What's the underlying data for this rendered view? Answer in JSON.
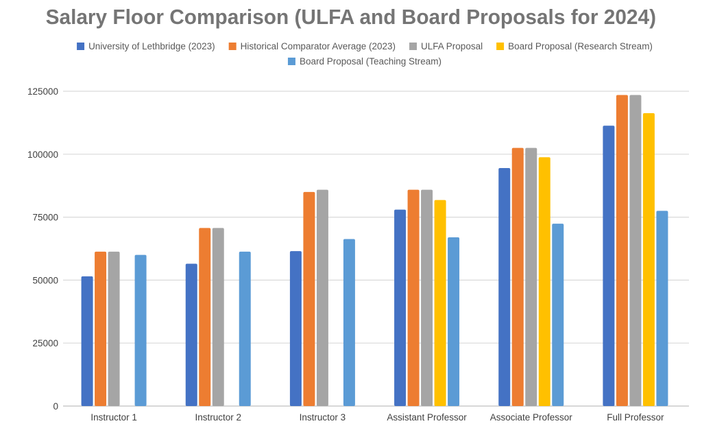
{
  "chart_data": {
    "type": "bar",
    "title": "Salary Floor Comparison (ULFA and Board Proposals for 2024)",
    "xlabel": "",
    "ylabel": "",
    "ylim": [
      0,
      125000
    ],
    "yticks": [
      "0",
      "25000",
      "50000",
      "75000",
      "100000",
      "125000"
    ],
    "grid": true,
    "legend_position": "top",
    "categories": [
      "Instructor 1",
      "Instructor 2",
      "Instructor 3",
      "Assistant Professor",
      "Associate Professor",
      "Full Professor"
    ],
    "series": [
      {
        "name": "University of Lethbridge (2023)",
        "color": "#4472C4",
        "values": [
          51500,
          56500,
          61500,
          78000,
          94500,
          111300
        ]
      },
      {
        "name": "Historical Comparator Average (2023)",
        "color": "#ED7D31",
        "values": [
          61300,
          70700,
          85000,
          85900,
          102500,
          123500
        ]
      },
      {
        "name": "ULFA Proposal",
        "color": "#A5A5A5",
        "values": [
          61300,
          70700,
          85900,
          85900,
          102500,
          123500
        ]
      },
      {
        "name": "Board Proposal (Research Stream)",
        "color": "#FFC000",
        "values": [
          null,
          null,
          null,
          81800,
          98800,
          116300
        ]
      },
      {
        "name": "Board Proposal  (Teaching Stream)",
        "color": "#5B9BD5",
        "values": [
          60000,
          61300,
          66300,
          67000,
          72400,
          77500
        ]
      }
    ]
  }
}
